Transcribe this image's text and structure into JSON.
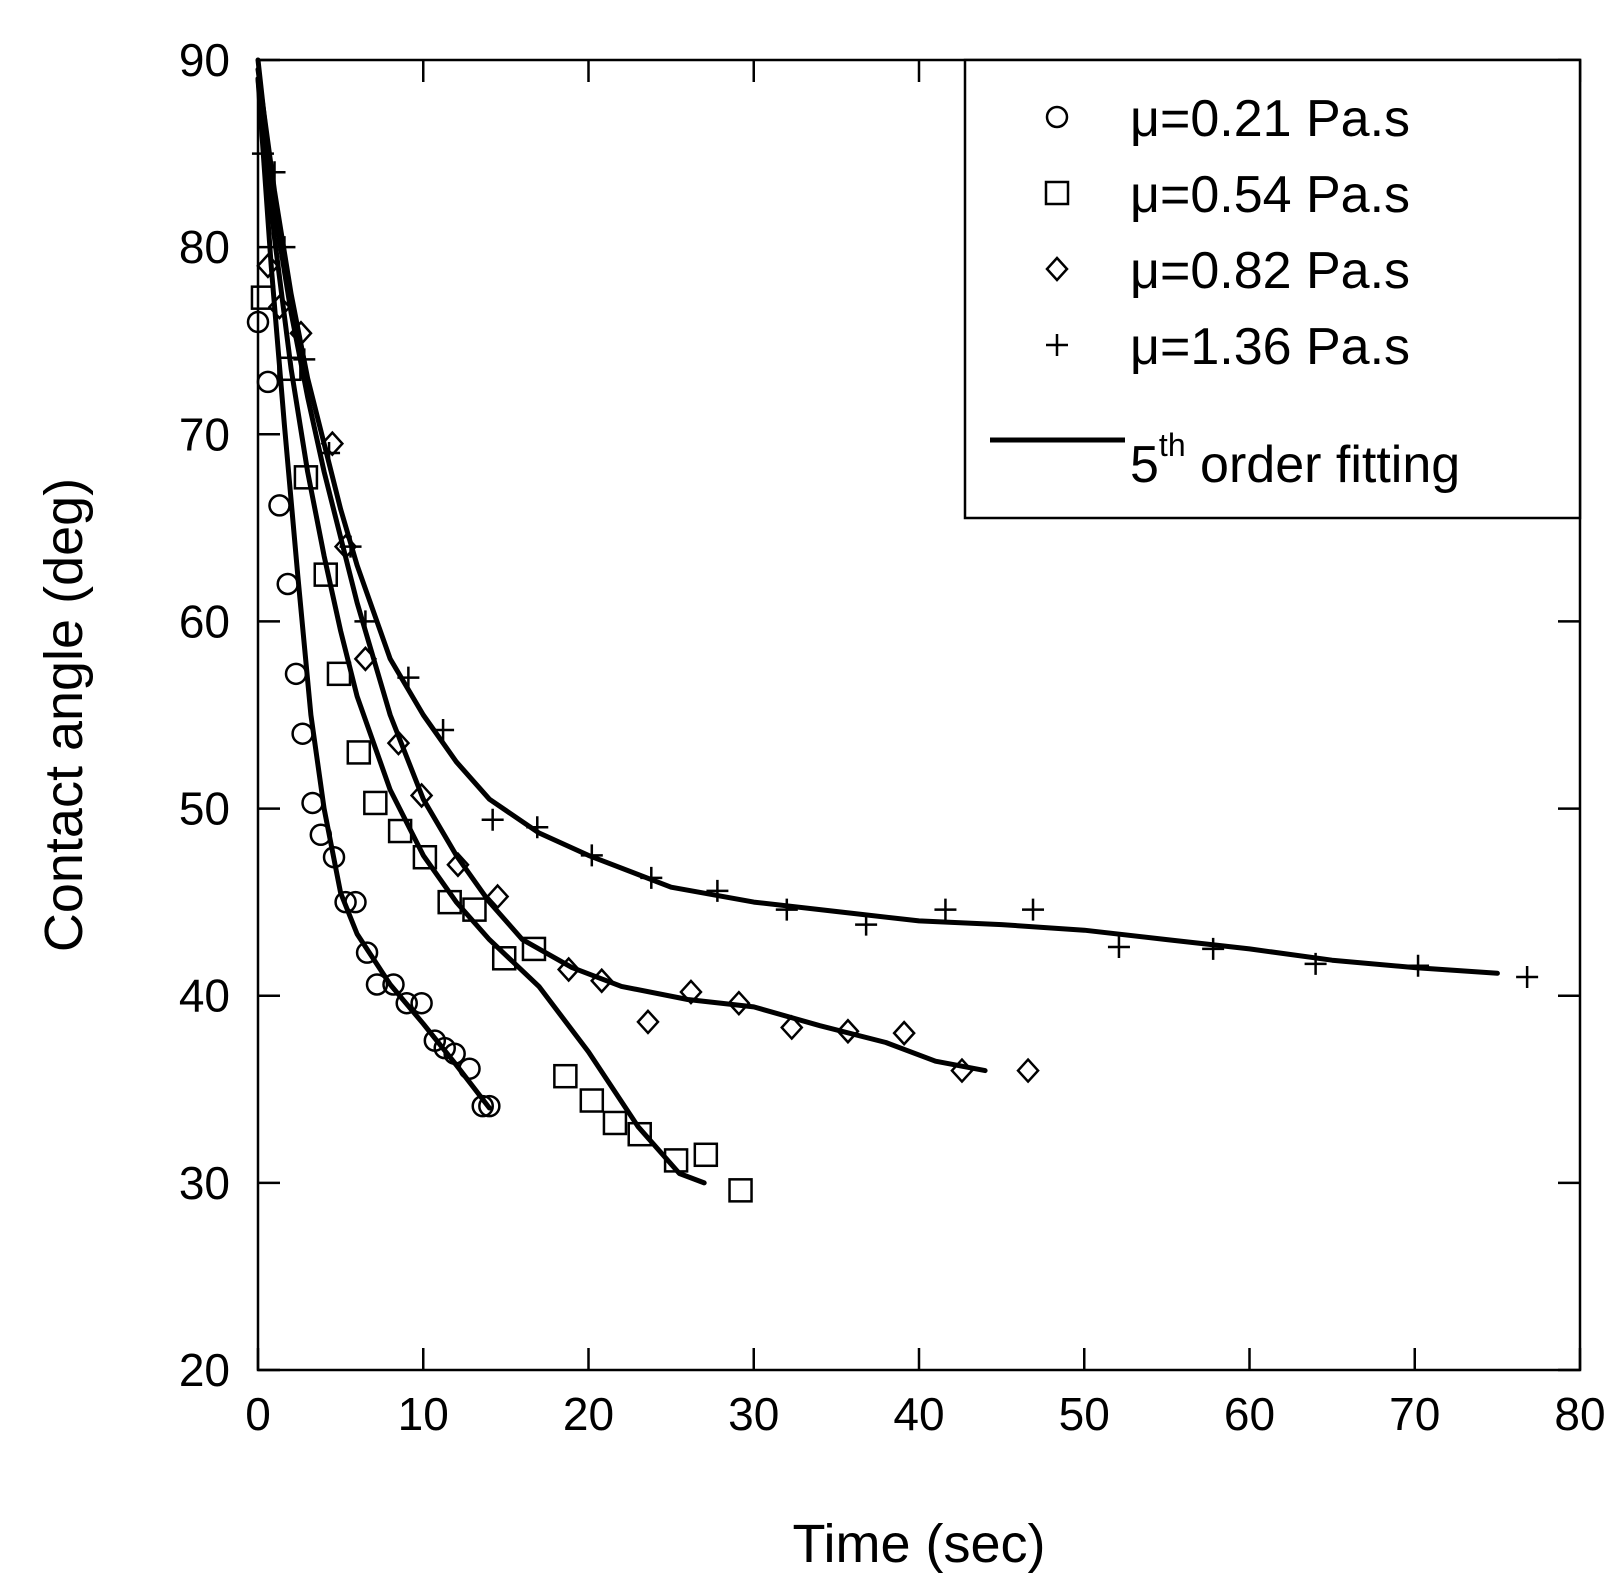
{
  "chart_data": {
    "type": "scatter",
    "title": "",
    "xlabel": "Time (sec)",
    "ylabel": "Contact angle (deg)",
    "xlim": [
      0,
      80
    ],
    "ylim": [
      20,
      90
    ],
    "xticks": [
      0,
      10,
      20,
      30,
      40,
      50,
      60,
      70,
      80
    ],
    "yticks": [
      20,
      30,
      40,
      50,
      60,
      70,
      80,
      90
    ],
    "grid": false,
    "legend_position": "top-right",
    "legend": {
      "items": [
        {
          "marker": "circle",
          "label": "μ=0.21 Pa.s"
        },
        {
          "marker": "square",
          "label": "μ=0.54 Pa.s"
        },
        {
          "marker": "diamond",
          "label": "μ=0.82 Pa.s"
        },
        {
          "marker": "plus",
          "label": "μ=1.36 Pa.s"
        }
      ],
      "fit_label_main": "5",
      "fit_label_sup": "th",
      "fit_label_rest": " order fitting"
    },
    "series": [
      {
        "marker": "circle",
        "points": [
          [
            0,
            76
          ],
          [
            0.6,
            72.8
          ],
          [
            1.3,
            66.2
          ],
          [
            1.8,
            62
          ],
          [
            2.3,
            57.2
          ],
          [
            2.7,
            54
          ],
          [
            3.3,
            50.3
          ],
          [
            3.8,
            48.6
          ],
          [
            4.6,
            47.4
          ],
          [
            5.3,
            45
          ],
          [
            5.9,
            45
          ],
          [
            6.6,
            42.3
          ],
          [
            7.2,
            40.6
          ],
          [
            8.2,
            40.6
          ],
          [
            9,
            39.6
          ],
          [
            9.9,
            39.6
          ],
          [
            10.7,
            37.6
          ],
          [
            11.3,
            37.2
          ],
          [
            11.9,
            36.9
          ],
          [
            12.8,
            36.1
          ],
          [
            13.6,
            34.1
          ],
          [
            14,
            34.1
          ]
        ],
        "fit": [
          [
            0,
            89
          ],
          [
            0.8,
            79
          ],
          [
            1.6,
            70.5
          ],
          [
            2.4,
            62.5
          ],
          [
            3.2,
            55
          ],
          [
            4,
            50
          ],
          [
            5,
            45.5
          ],
          [
            6,
            43.3
          ],
          [
            8,
            40.6
          ],
          [
            10,
            38.5
          ],
          [
            12,
            36.3
          ],
          [
            14,
            34
          ]
        ]
      },
      {
        "marker": "square",
        "points": [
          [
            0.3,
            77.3
          ],
          [
            1.9,
            73.5
          ],
          [
            2.9,
            67.7
          ],
          [
            4.1,
            62.5
          ],
          [
            4.9,
            57.2
          ],
          [
            6.1,
            53
          ],
          [
            7.1,
            50.3
          ],
          [
            8.6,
            48.8
          ],
          [
            10.1,
            47.4
          ],
          [
            11.6,
            45
          ],
          [
            13.1,
            44.6
          ],
          [
            14.9,
            42
          ],
          [
            16.7,
            42.5
          ],
          [
            18.6,
            35.7
          ],
          [
            20.2,
            34.4
          ],
          [
            21.6,
            33.2
          ],
          [
            23.1,
            32.6
          ],
          [
            25.3,
            31.2
          ],
          [
            27.1,
            31.5
          ],
          [
            29.2,
            29.6
          ]
        ],
        "fit": [
          [
            0,
            89
          ],
          [
            1,
            80.5
          ],
          [
            2,
            73.5
          ],
          [
            3,
            68
          ],
          [
            4,
            63.5
          ],
          [
            5,
            59.5
          ],
          [
            6,
            56
          ],
          [
            8,
            51
          ],
          [
            10,
            47.5
          ],
          [
            12,
            45
          ],
          [
            14,
            43
          ],
          [
            17,
            40.5
          ],
          [
            20,
            37
          ],
          [
            23,
            33
          ],
          [
            25.5,
            30.5
          ],
          [
            27,
            30
          ]
        ]
      },
      {
        "marker": "diamond",
        "points": [
          [
            0.6,
            79
          ],
          [
            1.3,
            76.8
          ],
          [
            2.6,
            75.4
          ],
          [
            4.5,
            69.5
          ],
          [
            5.3,
            64
          ],
          [
            6.5,
            58
          ],
          [
            8.5,
            53.5
          ],
          [
            9.9,
            50.7
          ],
          [
            12.1,
            47
          ],
          [
            14.5,
            45.3
          ],
          [
            18.8,
            41.4
          ],
          [
            20.8,
            40.8
          ],
          [
            23.6,
            38.6
          ],
          [
            26.2,
            40.2
          ],
          [
            29.1,
            39.6
          ],
          [
            32.3,
            38.3
          ],
          [
            35.7,
            38.1
          ],
          [
            39.1,
            38
          ],
          [
            42.6,
            36
          ],
          [
            46.6,
            36
          ]
        ],
        "fit": [
          [
            0,
            90
          ],
          [
            1,
            82
          ],
          [
            2,
            76.5
          ],
          [
            3,
            72
          ],
          [
            4,
            68
          ],
          [
            5,
            64.5
          ],
          [
            6,
            61
          ],
          [
            8,
            55
          ],
          [
            10,
            50.5
          ],
          [
            12,
            47.5
          ],
          [
            14,
            45
          ],
          [
            16,
            43
          ],
          [
            19,
            41.5
          ],
          [
            22,
            40.5
          ],
          [
            26,
            39.8
          ],
          [
            30,
            39.4
          ],
          [
            34,
            38.4
          ],
          [
            38,
            37.5
          ],
          [
            41,
            36.5
          ],
          [
            44,
            36
          ]
        ]
      },
      {
        "marker": "plus",
        "points": [
          [
            0.3,
            85
          ],
          [
            1,
            84
          ],
          [
            1.6,
            80
          ],
          [
            2.8,
            74
          ],
          [
            4.3,
            69
          ],
          [
            5.6,
            64
          ],
          [
            6.5,
            60
          ],
          [
            9.1,
            57
          ],
          [
            11.2,
            54.2
          ],
          [
            14.2,
            49.4
          ],
          [
            16.9,
            49
          ],
          [
            20.2,
            47.5
          ],
          [
            23.8,
            46.3
          ],
          [
            27.8,
            45.6
          ],
          [
            32,
            44.6
          ],
          [
            36.8,
            43.8
          ],
          [
            41.6,
            44.6
          ],
          [
            46.9,
            44.6
          ],
          [
            52.1,
            42.6
          ],
          [
            57.8,
            42.5
          ],
          [
            64,
            41.7
          ],
          [
            70.2,
            41.6
          ],
          [
            76.8,
            41
          ]
        ],
        "fit": [
          [
            0,
            89.5
          ],
          [
            1,
            83
          ],
          [
            2,
            77.5
          ],
          [
            3,
            73
          ],
          [
            4,
            69.5
          ],
          [
            5,
            66
          ],
          [
            6,
            63
          ],
          [
            8,
            58
          ],
          [
            10,
            55
          ],
          [
            12,
            52.5
          ],
          [
            14,
            50.5
          ],
          [
            17,
            48.7
          ],
          [
            20,
            47.5
          ],
          [
            25,
            45.8
          ],
          [
            30,
            45
          ],
          [
            35,
            44.5
          ],
          [
            40,
            44
          ],
          [
            45,
            43.8
          ],
          [
            50,
            43.5
          ],
          [
            55,
            43
          ],
          [
            60,
            42.5
          ],
          [
            65,
            41.9
          ],
          [
            70,
            41.5
          ],
          [
            75,
            41.2
          ]
        ]
      }
    ]
  }
}
